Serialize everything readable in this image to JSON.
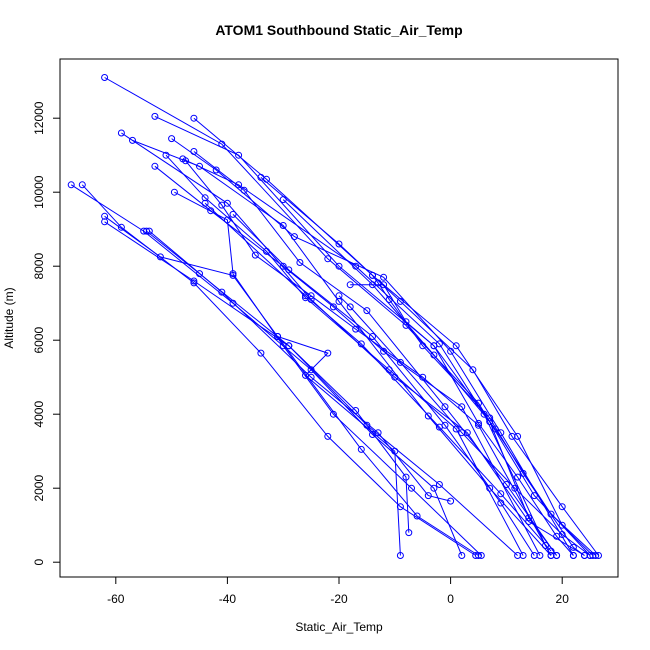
{
  "chart_data": {
    "type": "scatter",
    "title": "ATOM1 Southbound Static_Air_Temp",
    "xlabel": "Static_Air_Temp",
    "ylabel": "Altitude (m)",
    "xlim": [
      -70,
      30
    ],
    "ylim": [
      -400,
      13600
    ],
    "x_ticks": [
      -60,
      -40,
      -20,
      0,
      20
    ],
    "y_ticks": [
      0,
      2000,
      4000,
      6000,
      8000,
      10000,
      12000
    ],
    "grid": false,
    "legend": "none",
    "series_color": "#0000ff",
    "series": [
      {
        "points": [
          [
            -62,
            13100
          ],
          [
            -41,
            11300
          ],
          [
            -22,
            8200
          ],
          [
            -8,
            6400
          ],
          [
            5,
            4300
          ],
          [
            15,
            1800
          ],
          [
            25,
            180
          ]
        ]
      },
      {
        "points": [
          [
            -53,
            12050
          ],
          [
            -38,
            11000
          ],
          [
            -20,
            8000
          ],
          [
            -3,
            5850
          ],
          [
            8,
            3600
          ],
          [
            18,
            1300
          ],
          [
            26,
            180
          ]
        ]
      },
      {
        "points": [
          [
            -46,
            12000
          ],
          [
            -33,
            10350
          ],
          [
            -14,
            7750
          ],
          [
            1,
            5850
          ],
          [
            12,
            3400
          ],
          [
            20,
            1000
          ],
          [
            25.5,
            180
          ]
        ]
      },
      {
        "points": [
          [
            -59,
            11600
          ],
          [
            -40,
            9700
          ],
          [
            -25,
            7100
          ],
          [
            -10,
            5000
          ],
          [
            3,
            3500
          ],
          [
            14,
            1100
          ],
          [
            24,
            180
          ]
        ]
      },
      {
        "points": [
          [
            -57,
            11400
          ],
          [
            -45,
            10700
          ],
          [
            -30,
            9100
          ],
          [
            -20,
            7050
          ],
          [
            -4,
            3950
          ],
          [
            7,
            2000
          ],
          [
            18,
            180
          ]
        ]
      },
      {
        "points": [
          [
            -50,
            11450
          ],
          [
            -42,
            10600
          ],
          [
            -28,
            8800
          ],
          [
            -12,
            7700
          ],
          [
            0,
            5700
          ],
          [
            9,
            3500
          ],
          [
            22,
            180
          ]
        ]
      },
      {
        "points": [
          [
            -46,
            11100
          ],
          [
            -37,
            10050
          ],
          [
            -27,
            8100
          ],
          [
            -15,
            6800
          ],
          [
            -1,
            4200
          ],
          [
            10,
            2100
          ],
          [
            19,
            180
          ]
        ]
      },
      {
        "points": [
          [
            -51,
            11000
          ],
          [
            -44,
            9850
          ],
          [
            -33,
            8400
          ],
          [
            -26,
            7150
          ],
          [
            -11,
            5200
          ],
          [
            1,
            3600
          ],
          [
            13,
            180
          ]
        ]
      },
      {
        "points": [
          [
            -47.5,
            10850
          ],
          [
            -41,
            9650
          ],
          [
            -35,
            8300
          ],
          [
            -25,
            7200
          ],
          [
            -17,
            6300
          ],
          [
            -5,
            5000
          ],
          [
            5,
            3700
          ],
          [
            18,
            180
          ]
        ]
      },
      {
        "points": [
          [
            -53,
            10700
          ],
          [
            -43,
            9500
          ],
          [
            -30,
            8000
          ],
          [
            -21,
            6900
          ],
          [
            -12,
            5700
          ],
          [
            2,
            4200
          ],
          [
            16,
            180
          ]
        ]
      },
      {
        "points": [
          [
            -68,
            10200
          ],
          [
            -55,
            8950
          ],
          [
            -39,
            7000
          ],
          [
            -25,
            5200
          ],
          [
            -14,
            3450
          ],
          [
            -3,
            2000
          ],
          [
            2,
            180
          ]
        ]
      },
      {
        "points": [
          [
            -66,
            10200
          ],
          [
            -59,
            9050
          ],
          [
            -46,
            7550
          ],
          [
            -34,
            5650
          ],
          [
            -22,
            3400
          ],
          [
            -9,
            1500
          ],
          [
            4.5,
            180
          ]
        ]
      },
      {
        "points": [
          [
            -62,
            9350
          ],
          [
            -52,
            8250
          ],
          [
            -39,
            7750
          ],
          [
            -31,
            6100
          ],
          [
            -16,
            3050
          ],
          [
            -6,
            1250
          ],
          [
            5,
            180
          ]
        ]
      },
      {
        "points": [
          [
            -62,
            9200
          ],
          [
            -46,
            7600
          ],
          [
            -29,
            5850
          ],
          [
            -15,
            3700
          ],
          [
            -2,
            2100
          ],
          [
            12,
            180
          ]
        ]
      },
      {
        "points": [
          [
            -49.5,
            10000
          ],
          [
            -40,
            9250
          ],
          [
            -39,
            7800
          ],
          [
            -30,
            5850
          ],
          [
            -21,
            4000
          ],
          [
            -7,
            2000
          ],
          [
            5.5,
            180
          ]
        ]
      },
      {
        "points": [
          [
            -54.5,
            8950
          ],
          [
            -45,
            7800
          ],
          [
            -29,
            5850
          ],
          [
            -17,
            4100
          ],
          [
            -8,
            2300
          ],
          [
            -7.5,
            800
          ]
        ]
      },
      {
        "points": [
          [
            -54,
            8950
          ],
          [
            -41,
            7300
          ],
          [
            -25,
            5000
          ],
          [
            -13,
            3500
          ],
          [
            -4,
            1800
          ],
          [
            0,
            1650
          ]
        ]
      },
      {
        "points": [
          [
            -48,
            10900
          ],
          [
            -38,
            10200
          ],
          [
            -17,
            8000
          ],
          [
            -2,
            5900
          ],
          [
            6,
            4000
          ],
          [
            17,
            450
          ]
        ]
      },
      {
        "points": [
          [
            -44,
            9700
          ],
          [
            -26,
            7200
          ],
          [
            -16,
            5900
          ],
          [
            -2,
            3650
          ],
          [
            9,
            1850
          ],
          [
            18,
            300
          ]
        ]
      },
      {
        "points": [
          [
            -34,
            10400
          ],
          [
            -20,
            8600
          ],
          [
            -9,
            7050
          ],
          [
            4,
            5200
          ],
          [
            11,
            3400
          ],
          [
            20,
            1500
          ],
          [
            26.5,
            180
          ]
        ]
      },
      {
        "points": [
          [
            -30,
            9800
          ],
          [
            -14,
            7500
          ],
          [
            -3,
            5600
          ],
          [
            7,
            3800
          ],
          [
            14,
            1200
          ],
          [
            19,
            180
          ]
        ]
      },
      {
        "points": [
          [
            -39,
            9400
          ],
          [
            -29,
            7900
          ],
          [
            -14,
            6100
          ],
          [
            -1,
            3700
          ],
          [
            9,
            1600
          ],
          [
            15,
            180
          ]
        ]
      },
      {
        "points": [
          [
            -31,
            6100
          ],
          [
            -22,
            5650
          ],
          [
            -26,
            5050
          ],
          [
            -10,
            3000
          ],
          [
            -9,
            180
          ]
        ]
      },
      {
        "points": [
          [
            -20,
            7200
          ],
          [
            -18,
            6900
          ],
          [
            -9,
            5400
          ],
          [
            2,
            3500
          ],
          [
            11.5,
            2000
          ],
          [
            20,
            750
          ],
          [
            25,
            180
          ]
        ]
      },
      {
        "points": [
          [
            -14,
            7750
          ],
          [
            -13,
            7550
          ],
          [
            -11,
            7100
          ],
          [
            -5,
            5850
          ],
          [
            7,
            3900
          ],
          [
            13,
            2400
          ],
          [
            22,
            400
          ],
          [
            24,
            180
          ]
        ]
      },
      {
        "points": [
          [
            -18,
            7500
          ],
          [
            -12,
            7500
          ],
          [
            -8,
            6500
          ],
          [
            -3,
            5850
          ],
          [
            5,
            3750
          ],
          [
            12,
            2300
          ],
          [
            19,
            700
          ],
          [
            22,
            180
          ]
        ]
      }
    ]
  }
}
